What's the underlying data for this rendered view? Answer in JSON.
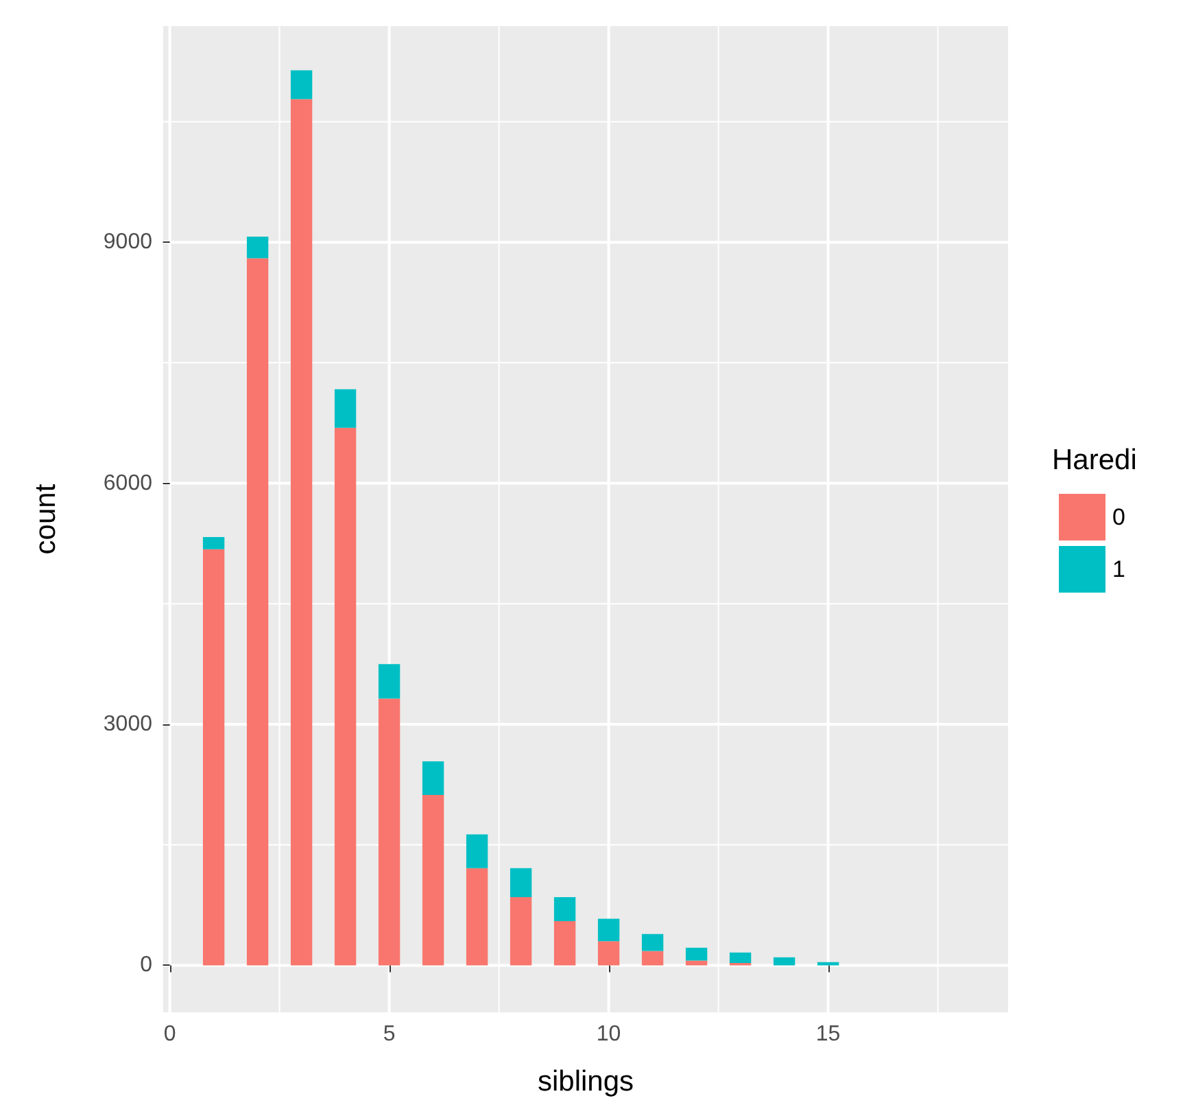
{
  "chart_data": {
    "type": "bar",
    "xlabel": "siblings",
    "ylabel": "count",
    "legend_title": "Haredi",
    "x": [
      1,
      2,
      3,
      4,
      5,
      6,
      7,
      8,
      9,
      10,
      11,
      12,
      13,
      14,
      15
    ],
    "stacked": true,
    "series": [
      {
        "name": "0",
        "color": "#f8766d",
        "values": [
          5180,
          8800,
          10780,
          6690,
          3320,
          2120,
          1210,
          850,
          550,
          300,
          180,
          60,
          30,
          0,
          0
        ]
      },
      {
        "name": "1",
        "color": "#00bfc4",
        "values": [
          150,
          270,
          360,
          480,
          430,
          420,
          420,
          360,
          300,
          280,
          210,
          160,
          130,
          100,
          40
        ]
      }
    ],
    "xlim": [
      -0.15,
      19.1
    ],
    "xticks": [
      0,
      5,
      10,
      15
    ],
    "ylim": [
      -585,
      11690
    ],
    "yticks": [
      0,
      3000,
      6000,
      9000
    ],
    "grid": true,
    "legend": "right"
  }
}
